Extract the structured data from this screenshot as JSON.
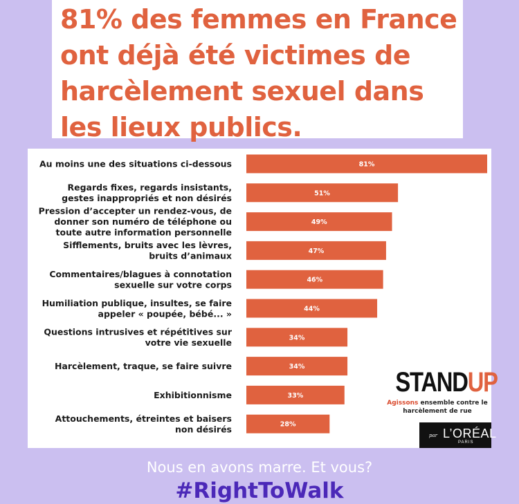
{
  "headline": "81% des femmes en France ont déjà été victimes de harcèlement sexuel dans les lieux publics.",
  "chart_data": {
    "type": "bar",
    "orientation": "horizontal",
    "xlim": [
      0,
      81
    ],
    "categories": [
      [
        "Au moins une des situations ci-dessous"
      ],
      [
        "Regards fixes, regards insistants,",
        "gestes inappropriés et non désirés"
      ],
      [
        "Pression d’accepter un rendez-vous, de",
        "donner son numéro de téléphone ou",
        "toute autre information personnelle"
      ],
      [
        "Sifflements, bruits avec les lèvres,",
        "bruits d’animaux"
      ],
      [
        "Commentaires/blagues à connotation",
        "sexuelle sur votre corps"
      ],
      [
        "Humiliation publique, insultes, se faire",
        "appeler « poupée, bébé... »"
      ],
      [
        "Questions intrusives et répétitives sur",
        "votre vie sexuelle"
      ],
      [
        "Harcèlement, traque, se faire suivre"
      ],
      [
        "Exhibitionnisme"
      ],
      [
        "Attouchements, étreintes et baisers",
        "non désirés"
      ]
    ],
    "values": [
      81,
      51,
      49,
      47,
      46,
      44,
      34,
      34,
      33,
      28
    ],
    "value_labels": [
      "81%",
      "51%",
      "49%",
      "47%",
      "46%",
      "44%",
      "34%",
      "34%",
      "33%",
      "28%"
    ],
    "bar_color": "#e0623f",
    "grid": false
  },
  "standup": {
    "logo_stand": "STAND",
    "logo_up": "UP",
    "tagline_highlight": "Agissons",
    "tagline_rest": "ensemble contre le",
    "tagline_line2": "harcèlement de rue"
  },
  "loreal": {
    "par": "par",
    "name": "L’ORÉAL",
    "sub": "PARIS"
  },
  "footer": {
    "tagline": "Nous en avons marre. Et vous?",
    "hashtag": "#RightToWalk"
  },
  "colors": {
    "background": "#cbbff0",
    "accent": "#e0623f",
    "hashtag": "#4b28b8"
  }
}
